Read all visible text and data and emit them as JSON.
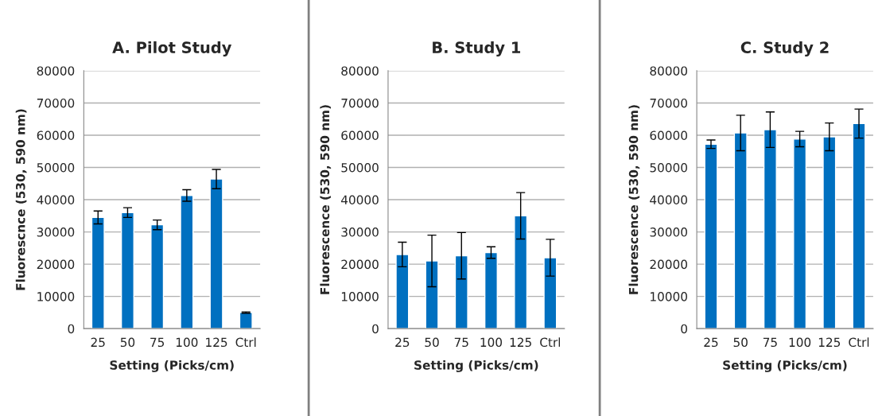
{
  "chart_data": [
    {
      "type": "bar",
      "title": "A. Pilot Study",
      "xlabel": "Setting (Picks/cm)",
      "ylabel": "Fluorescnce (530, 590 nm)",
      "categories": [
        "25",
        "50",
        "75",
        "100",
        "125",
        "Ctrl"
      ],
      "color": "#0070c0",
      "values": [
        34500,
        36000,
        32200,
        41300,
        46400,
        5000
      ],
      "errors": [
        2000,
        1500,
        1500,
        1800,
        3000,
        200
      ],
      "ylim": [
        0,
        80000
      ],
      "yticks": [
        0,
        10000,
        20000,
        30000,
        40000,
        50000,
        60000,
        70000,
        80000
      ],
      "grid": "y",
      "legend": false
    },
    {
      "type": "bar",
      "title": "B. Study 1",
      "xlabel": "Setting (Picks/cm)",
      "ylabel": "Fluorescence (530, 590 nm)",
      "categories": [
        "25",
        "50",
        "75",
        "100",
        "125",
        "Ctrl"
      ],
      "color": "#0070c0",
      "values": [
        23000,
        21000,
        22600,
        23600,
        35000,
        22000
      ],
      "errors": [
        3800,
        8000,
        7200,
        1800,
        7200,
        5700
      ],
      "ylim": [
        0,
        80000
      ],
      "yticks": [
        0,
        10000,
        20000,
        30000,
        40000,
        50000,
        60000,
        70000,
        80000
      ],
      "grid": "y",
      "legend": false
    },
    {
      "type": "bar",
      "title": "C. Study 2",
      "xlabel": "Setting (Picks/cm)",
      "ylabel": "Fluorescence (530, 590 nm)",
      "categories": [
        "25",
        "50",
        "75",
        "100",
        "125",
        "Ctrl"
      ],
      "color": "#0070c0",
      "values": [
        57200,
        60700,
        61700,
        58800,
        59500,
        63600
      ],
      "errors": [
        1300,
        5500,
        5500,
        2400,
        4300,
        4500
      ],
      "ylim": [
        0,
        80000
      ],
      "yticks": [
        0,
        10000,
        20000,
        30000,
        40000,
        50000,
        60000,
        70000,
        80000
      ],
      "grid": "y",
      "legend": false
    }
  ]
}
